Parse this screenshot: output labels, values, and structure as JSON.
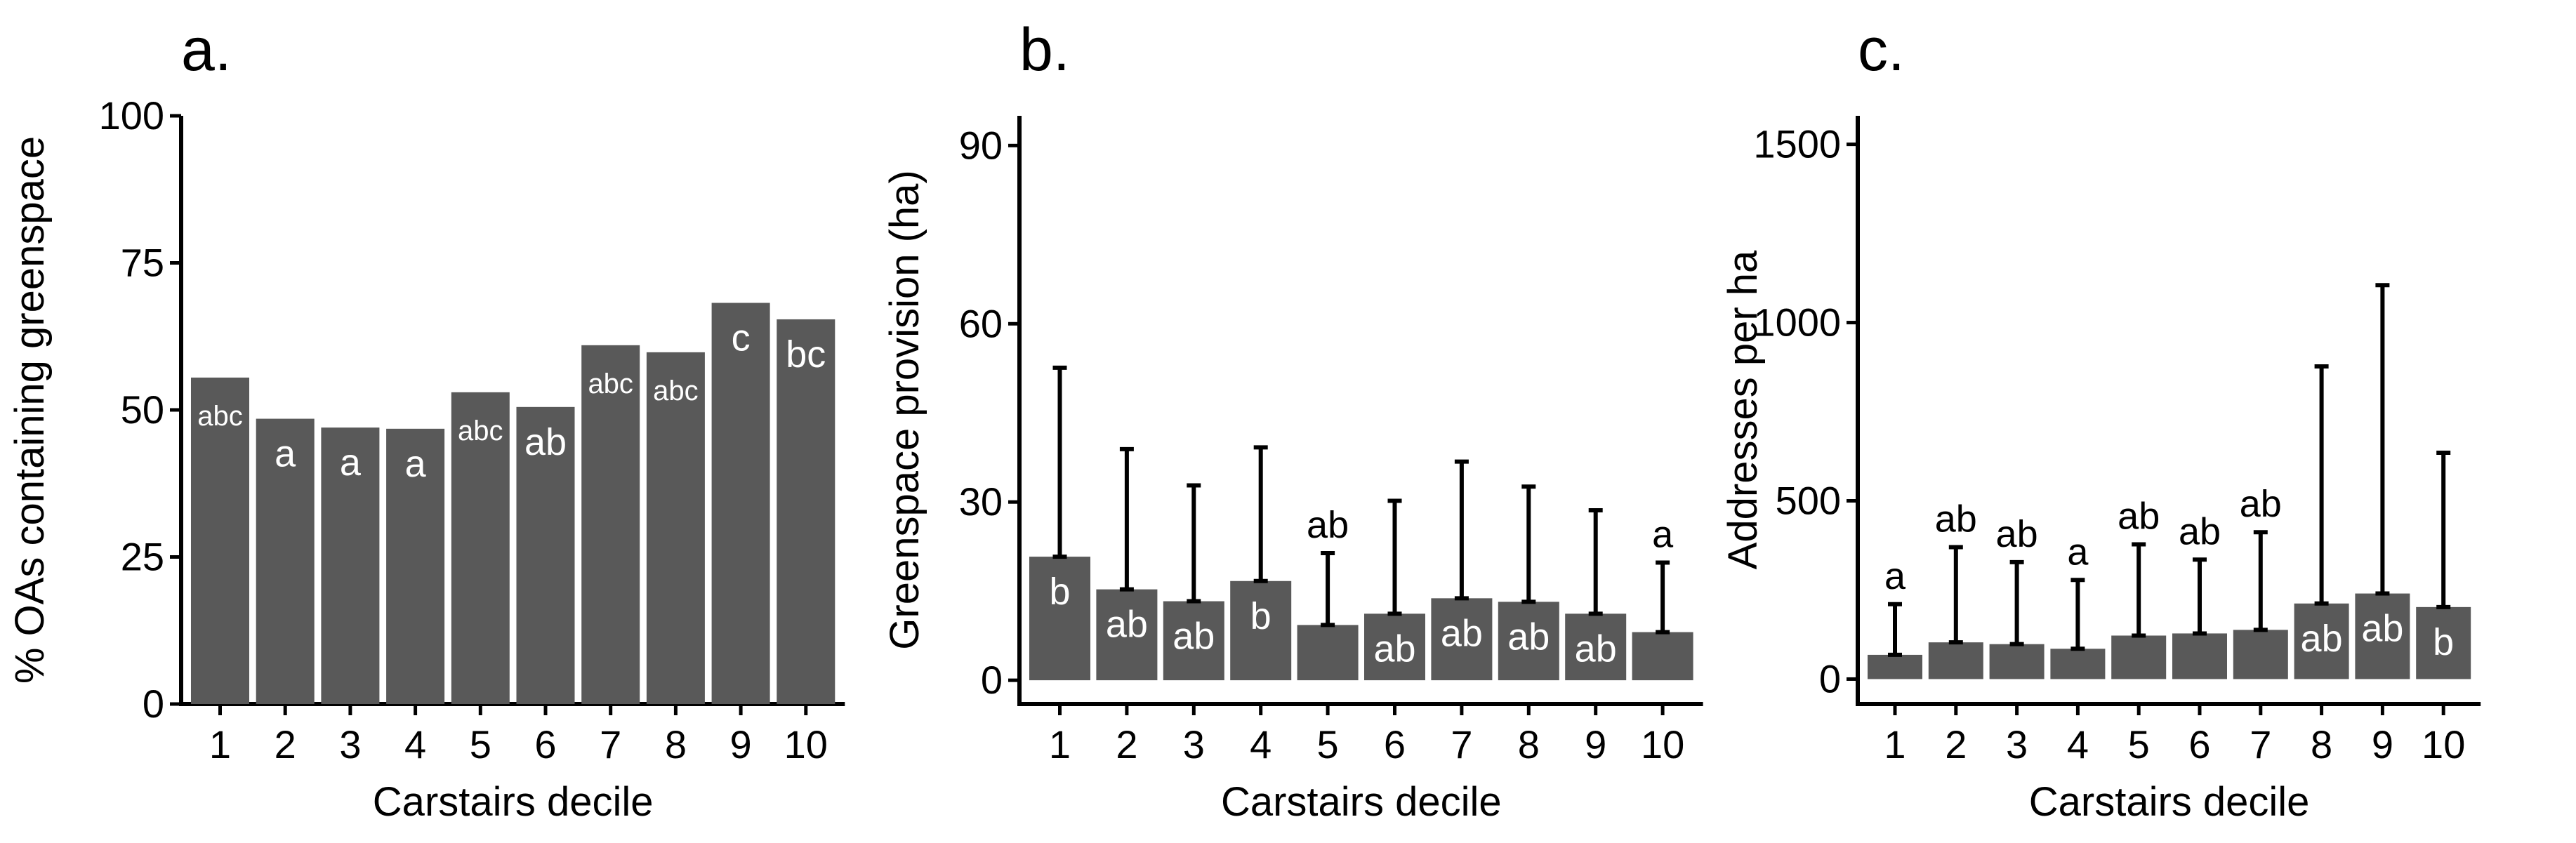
{
  "colors": {
    "bar": "#595959",
    "axis": "#000000",
    "background": "#ffffff"
  },
  "chart_data": [
    {
      "panel": "a.",
      "type": "bar",
      "xlabel": "Carstairs decile",
      "ylabel": "% OAs containing greenspace",
      "ylim": [
        0,
        100
      ],
      "yticks": [
        0,
        25,
        50,
        75,
        100
      ],
      "categories": [
        "1",
        "2",
        "3",
        "4",
        "5",
        "6",
        "7",
        "8",
        "9",
        "10"
      ],
      "values": [
        55.5,
        48.5,
        47,
        46.8,
        53,
        50.5,
        61,
        59.8,
        68.2,
        65.4
      ],
      "group_labels": [
        "abc",
        "a",
        "a",
        "a",
        "abc",
        "ab",
        "abc",
        "abc",
        "c",
        "bc"
      ],
      "error_upper": null,
      "grid": false
    },
    {
      "panel": "b.",
      "type": "bar",
      "xlabel": "Carstairs decile",
      "ylabel": "Greenspace provision (ha)",
      "ylim": [
        -4,
        95
      ],
      "yticks": [
        0,
        30,
        60,
        90
      ],
      "categories": [
        "1",
        "2",
        "3",
        "4",
        "5",
        "6",
        "7",
        "8",
        "9",
        "10"
      ],
      "values": [
        20.8,
        15.3,
        13.3,
        16.7,
        9.3,
        11.2,
        13.8,
        13.2,
        11.2,
        8.1
      ],
      "error_upper": [
        52.6,
        38.9,
        32.8,
        39.2,
        21.4,
        30.2,
        36.8,
        32.6,
        28.6,
        19.8
      ],
      "group_labels": [
        "b",
        "ab",
        "ab",
        "b",
        "ab",
        "ab",
        "ab",
        "ab",
        "ab",
        "a"
      ],
      "grid": false
    },
    {
      "panel": "c.",
      "type": "bar",
      "xlabel": "Carstairs decile",
      "ylabel": "Addresses per ha",
      "ylim": [
        -70,
        1580
      ],
      "yticks": [
        0,
        500,
        1000,
        1500
      ],
      "categories": [
        "1",
        "2",
        "3",
        "4",
        "5",
        "6",
        "7",
        "8",
        "9",
        "10"
      ],
      "values": [
        68,
        103,
        98,
        85,
        122,
        128,
        138,
        212,
        240,
        202
      ],
      "error_upper": [
        210,
        370,
        328,
        278,
        378,
        335,
        412,
        877,
        1105,
        635
      ],
      "group_labels": [
        "a",
        "ab",
        "ab",
        "a",
        "ab",
        "ab",
        "ab",
        "ab",
        "ab",
        "b"
      ],
      "grid": false
    }
  ]
}
